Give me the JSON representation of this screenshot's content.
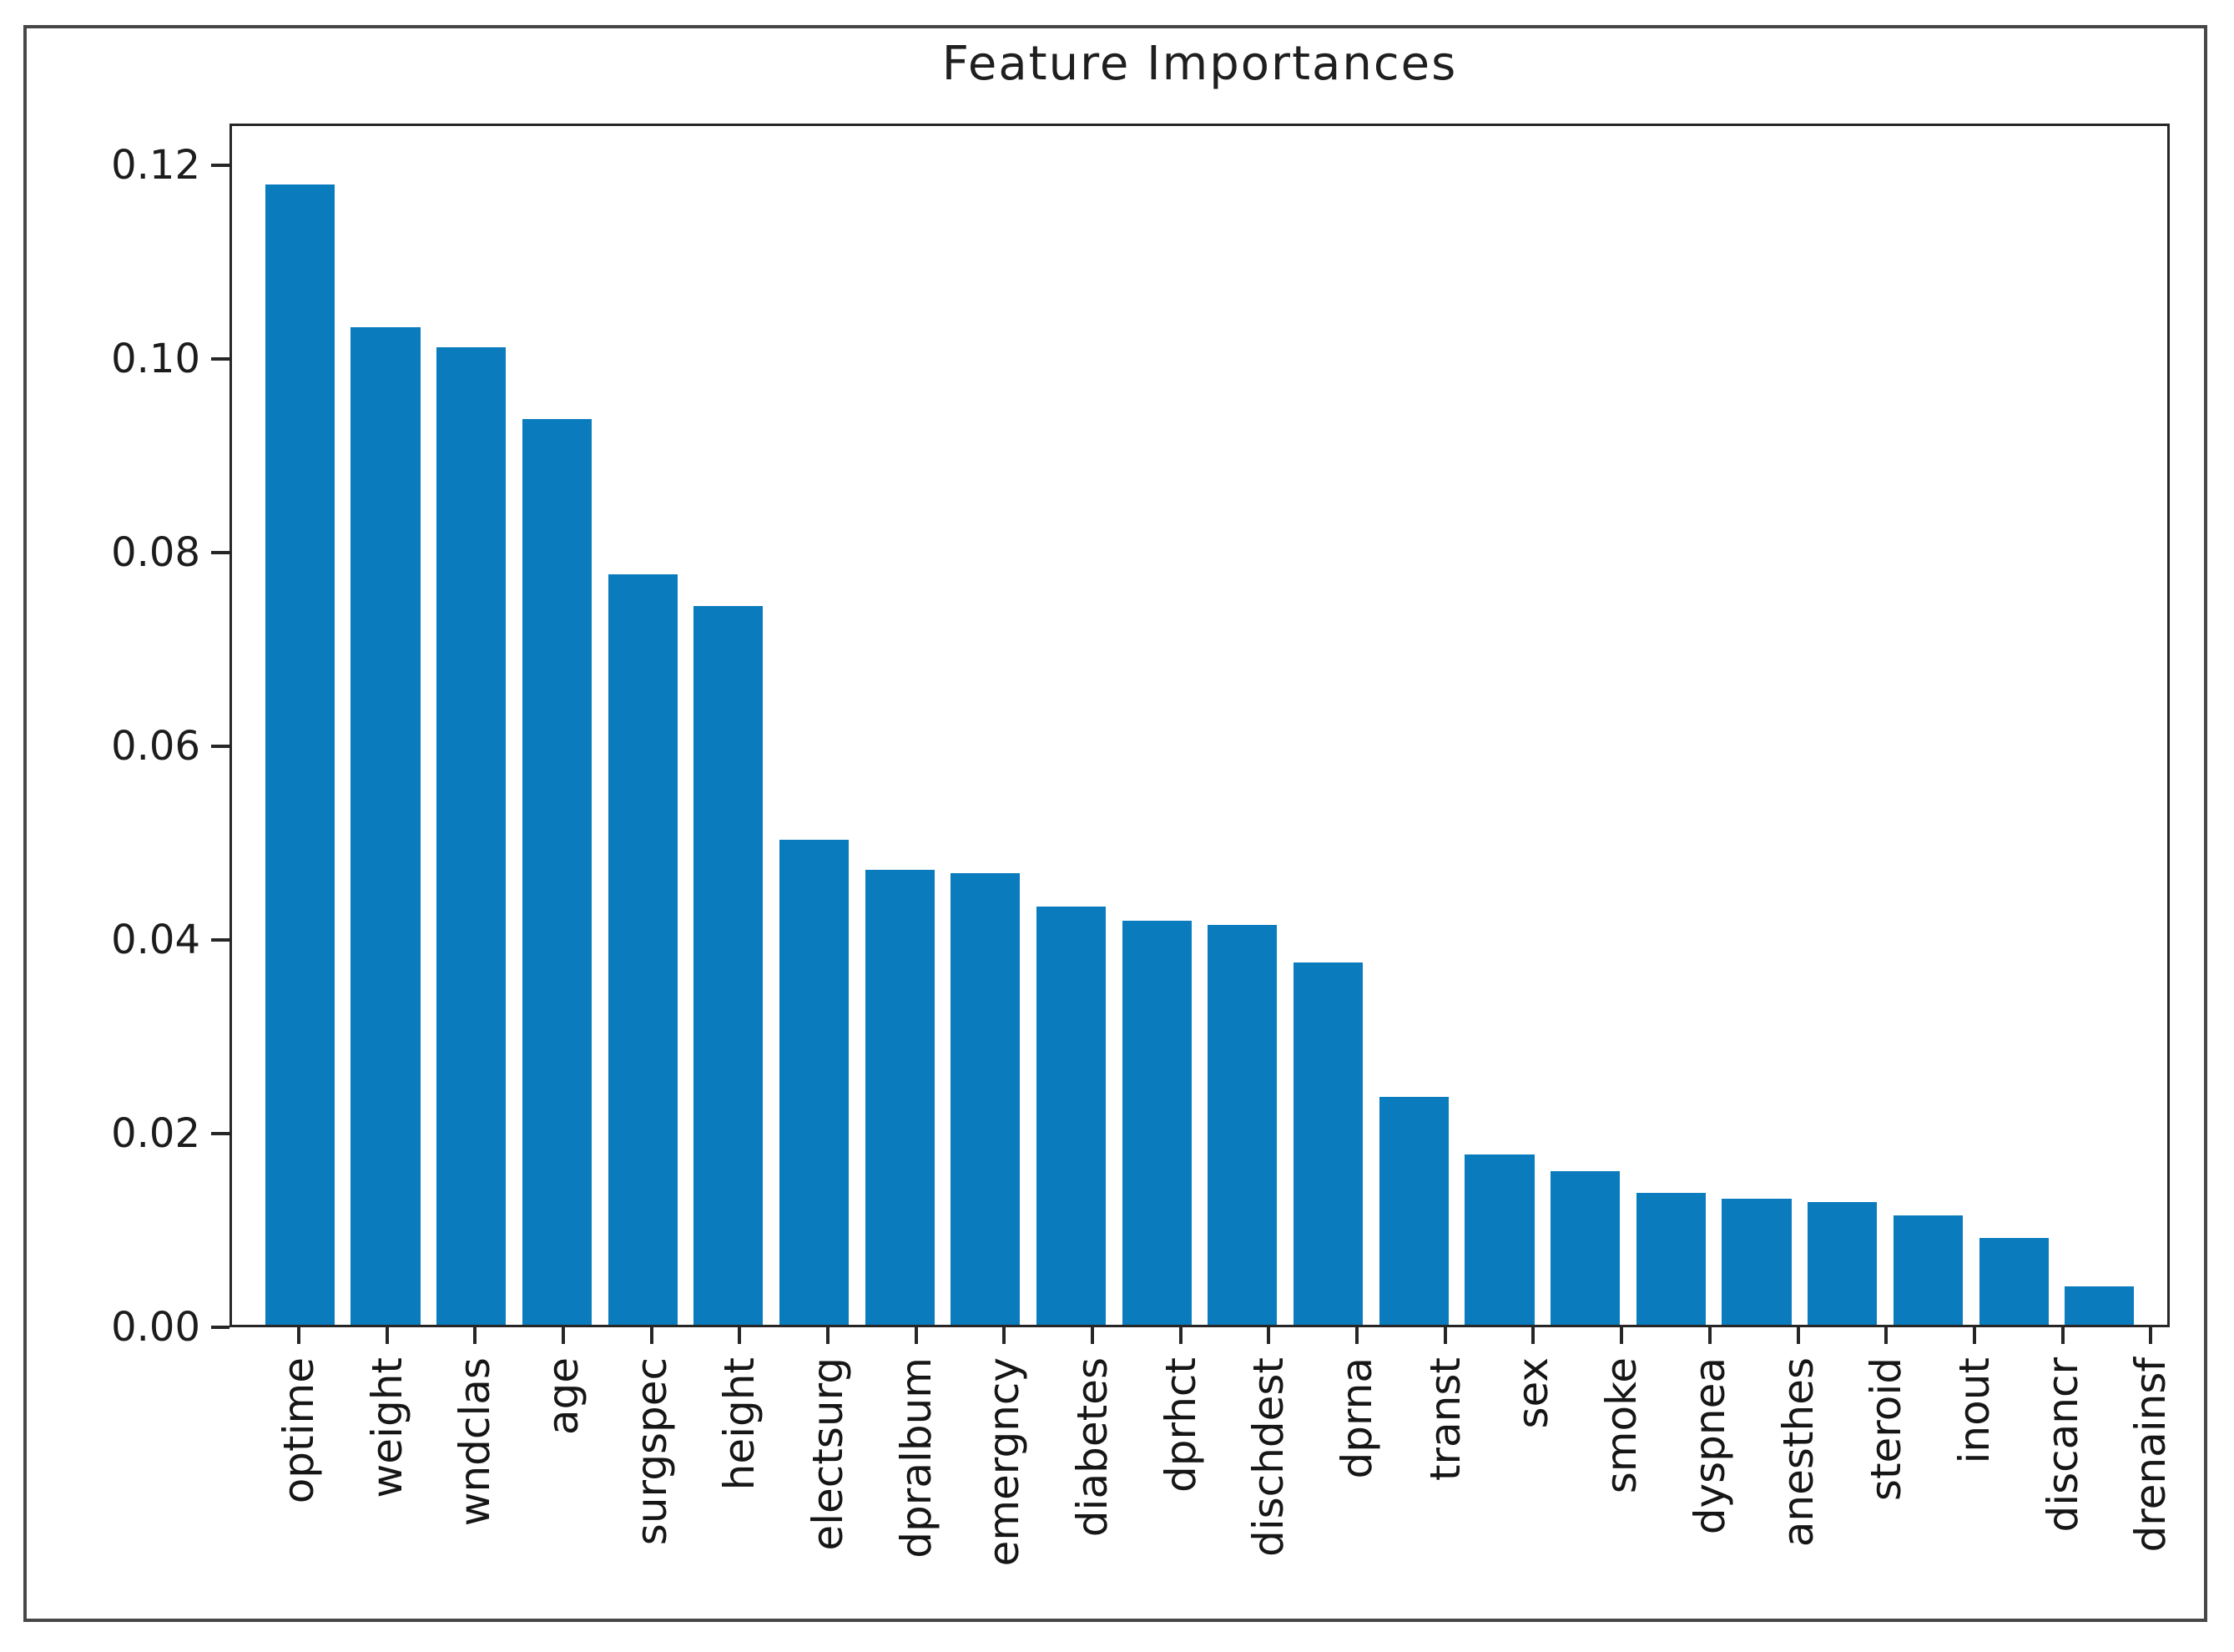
{
  "chart_data": {
    "type": "bar",
    "title": "Feature Importances",
    "xlabel": "",
    "ylabel": "",
    "grid": false,
    "legend": "none",
    "bar_color": "#0a7cbe",
    "axis_color": "#262626",
    "ylim": [
      0,
      0.1243
    ],
    "ytick_labels": [
      "0.00",
      "0.02",
      "0.04",
      "0.06",
      "0.08",
      "0.10",
      "0.12"
    ],
    "ytick_values": [
      0.0,
      0.02,
      0.04,
      0.06,
      0.08,
      0.1,
      0.12
    ],
    "categories": [
      "optime",
      "weight",
      "wndclas",
      "age",
      "surgspec",
      "height",
      "electsurg",
      "dpralbum",
      "emergncy",
      "diabetes",
      "dprhct",
      "dischdest",
      "dprna",
      "transt",
      "sex",
      "smoke",
      "dyspnea",
      "anesthes",
      "steroid",
      "inout",
      "discancr",
      "drenainsf"
    ],
    "values": [
      0.1182,
      0.1034,
      0.1014,
      0.0939,
      0.0778,
      0.0745,
      0.0503,
      0.0472,
      0.0468,
      0.0434,
      0.0419,
      0.0415,
      0.0376,
      0.0236,
      0.0177,
      0.0159,
      0.0137,
      0.0131,
      0.0127,
      0.0113,
      0.009,
      0.004
    ]
  }
}
